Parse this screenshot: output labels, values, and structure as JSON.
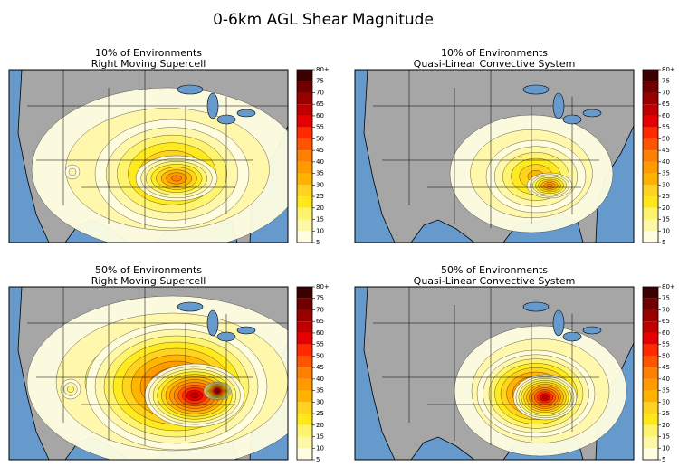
{
  "figure": {
    "title": "0-6km AGL Shear Magnitude",
    "panels": [
      {
        "title_lines": [
          "10% of Environments",
          "Right Moving Supercell"
        ]
      },
      {
        "title_lines": [
          "10% of Environments",
          "Quasi-Linear Convective System"
        ]
      },
      {
        "title_lines": [
          "50% of Environments",
          "Right Moving Supercell"
        ]
      },
      {
        "title_lines": [
          "50% of Environments",
          "Quasi-Linear Convective System"
        ]
      }
    ],
    "colorbar": {
      "ticks": [
        5,
        10,
        15,
        20,
        25,
        30,
        35,
        40,
        45,
        50,
        55,
        60,
        65,
        70,
        75,
        {
          "value": 80,
          "label": "80+"
        }
      ],
      "colors": [
        "#fffde0",
        "#fff7a8",
        "#fff36b",
        "#ffe81a",
        "#ffd21f",
        "#ffb300",
        "#ff9a00",
        "#ff7f00",
        "#ff5500",
        "#ff2a00",
        "#e60000",
        "#c00000",
        "#9a0000",
        "#6e0000",
        "#3d0000"
      ]
    }
  }
}
